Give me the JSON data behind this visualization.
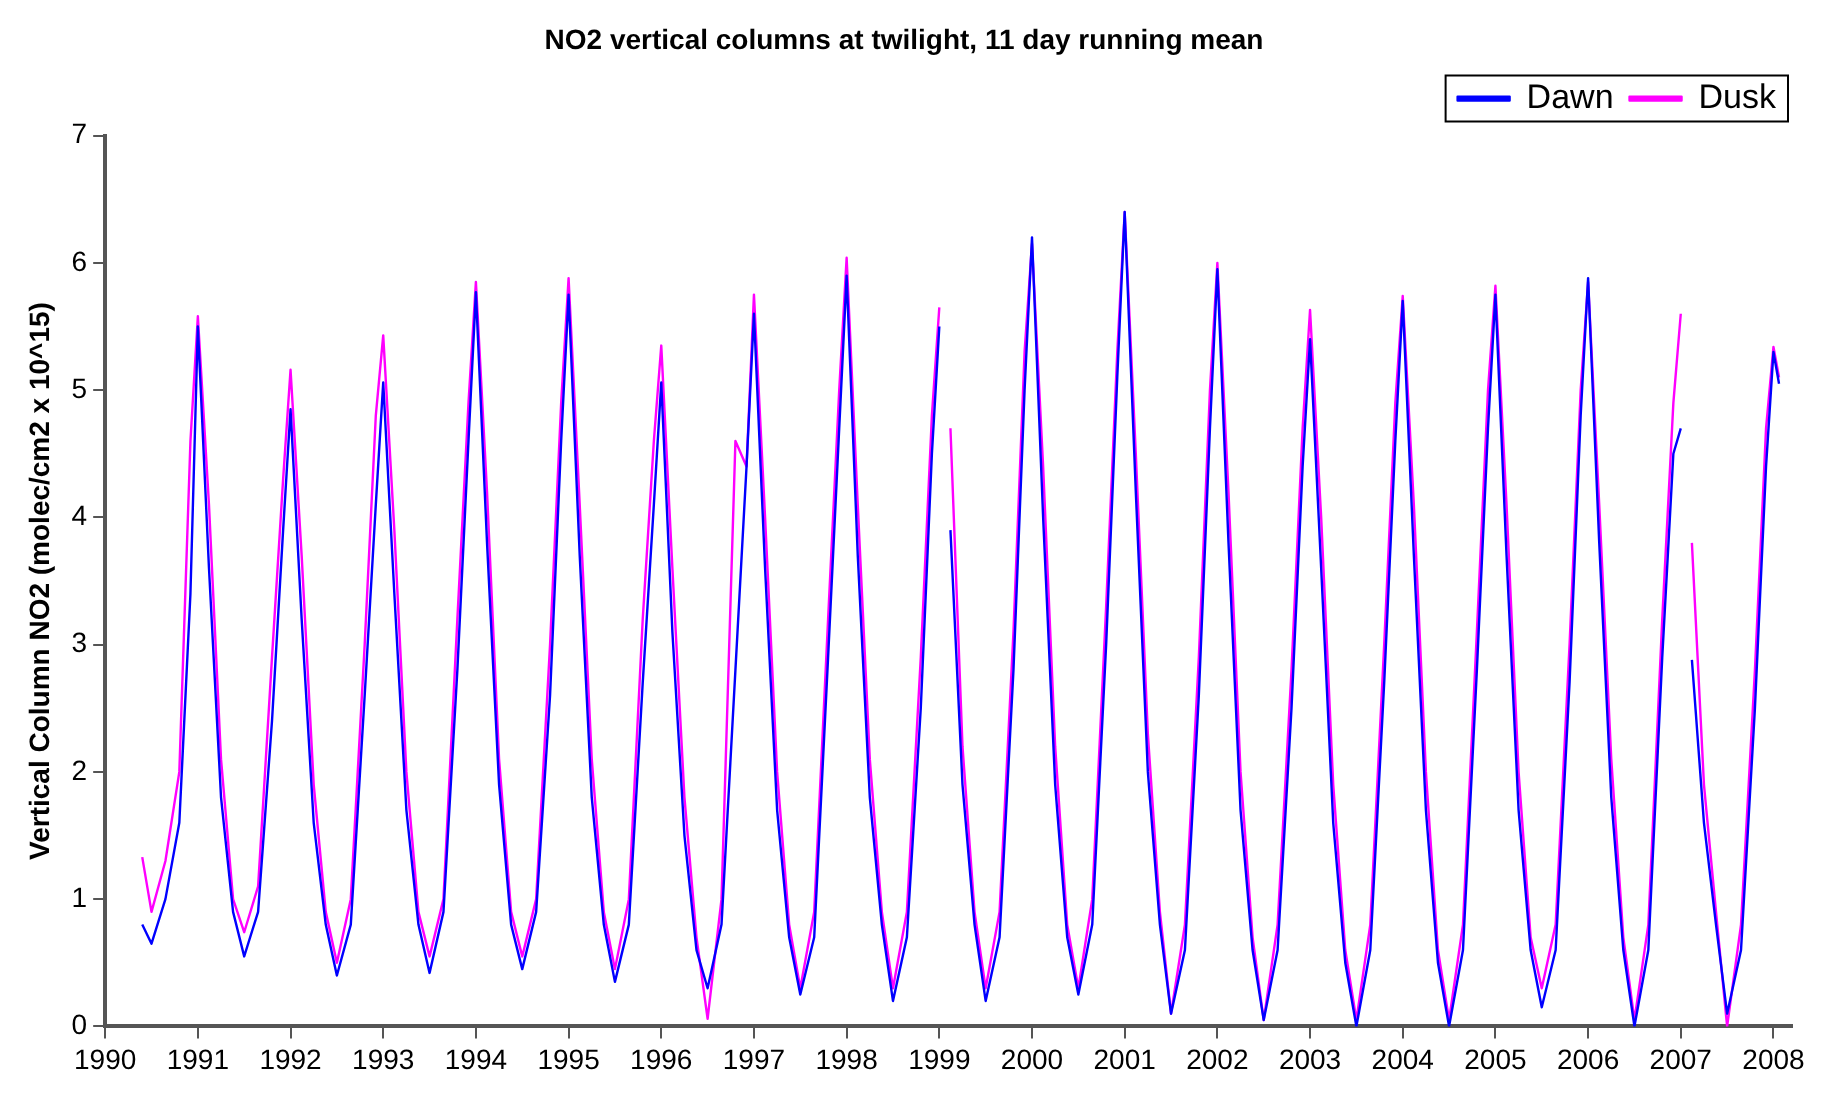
{
  "chart_data": {
    "type": "line",
    "title": "NO2 vertical columns at twilight, 11 day running mean",
    "ylabel": "Vertical Column NO2 (molec/cm2 x 10^15)",
    "x": [
      1990.4,
      1990.5,
      1990.65,
      1990.8,
      1990.92,
      1991,
      1991.12,
      1991.25,
      1991.38,
      1991.5,
      1991.65,
      1991.8,
      1991.92,
      1992,
      1992.12,
      1992.25,
      1992.38,
      1992.5,
      1992.65,
      1992.8,
      1992.92,
      1993,
      1993.12,
      1993.25,
      1993.38,
      1993.5,
      1993.65,
      1993.8,
      1993.92,
      1994,
      1994.12,
      1994.25,
      1994.38,
      1994.5,
      1994.65,
      1994.8,
      1994.92,
      1995,
      1995.12,
      1995.25,
      1995.38,
      1995.5,
      1995.65,
      1995.8,
      1995.92,
      1996,
      1996.12,
      1996.25,
      1996.38,
      1996.5,
      1996.65,
      1996.8,
      1996.92,
      1997,
      1997.12,
      1997.25,
      1997.38,
      1997.5,
      1997.65,
      1997.8,
      1997.92,
      1998,
      1998.12,
      1998.25,
      1998.38,
      1998.5,
      1998.65,
      1998.8,
      1998.92,
      1999,
      1999.06,
      1999.12,
      1999.25,
      1999.38,
      1999.5,
      1999.65,
      1999.8,
      1999.92,
      2000,
      2000.12,
      2000.25,
      2000.38,
      2000.5,
      2000.65,
      2000.8,
      2000.92,
      2001,
      2001.12,
      2001.25,
      2001.38,
      2001.5,
      2001.65,
      2001.8,
      2001.92,
      2002,
      2002.12,
      2002.25,
      2002.38,
      2002.5,
      2002.65,
      2002.8,
      2002.92,
      2003,
      2003.12,
      2003.25,
      2003.38,
      2003.5,
      2003.65,
      2003.8,
      2003.92,
      2004,
      2004.12,
      2004.25,
      2004.38,
      2004.5,
      2004.65,
      2004.8,
      2004.92,
      2005,
      2005.12,
      2005.25,
      2005.38,
      2005.5,
      2005.65,
      2005.8,
      2005.92,
      2006,
      2006.12,
      2006.25,
      2006.38,
      2006.5,
      2006.65,
      2006.8,
      2006.92,
      2007,
      2007.06,
      2007.12,
      2007.25,
      2007.38,
      2007.5,
      2007.65,
      2007.8,
      2007.92,
      2008,
      2008.06
    ],
    "series": [
      {
        "name": "Dawn",
        "color": "#0000ff",
        "values": [
          0.8,
          0.65,
          1.0,
          1.6,
          3.4,
          5.5,
          3.6,
          1.8,
          0.9,
          0.55,
          0.9,
          2.4,
          3.9,
          4.85,
          3.2,
          1.6,
          0.8,
          0.4,
          0.8,
          2.6,
          4.1,
          5.06,
          3.4,
          1.7,
          0.8,
          0.42,
          0.9,
          2.8,
          4.6,
          5.77,
          3.8,
          1.9,
          0.8,
          0.45,
          0.9,
          2.6,
          4.6,
          5.75,
          3.7,
          1.8,
          0.8,
          0.35,
          0.8,
          2.7,
          4.1,
          5.06,
          3.1,
          1.5,
          0.6,
          0.3,
          0.8,
          2.8,
          4.4,
          5.6,
          3.6,
          1.7,
          0.7,
          0.25,
          0.7,
          2.9,
          4.7,
          5.9,
          3.7,
          1.8,
          0.8,
          0.2,
          0.7,
          2.5,
          4.5,
          5.5,
          null,
          3.9,
          1.9,
          0.8,
          0.2,
          0.7,
          2.8,
          5.0,
          6.2,
          4.0,
          1.9,
          0.7,
          0.25,
          0.8,
          3.0,
          5.1,
          6.4,
          4.2,
          2.0,
          0.8,
          0.1,
          0.6,
          2.6,
          4.7,
          5.95,
          3.8,
          1.7,
          0.6,
          0.05,
          0.6,
          2.5,
          4.4,
          5.4,
          3.6,
          1.6,
          0.5,
          0.0,
          0.6,
          2.7,
          4.6,
          5.7,
          3.7,
          1.7,
          0.5,
          0.0,
          0.6,
          2.8,
          4.7,
          5.75,
          3.7,
          1.7,
          0.6,
          0.15,
          0.6,
          2.7,
          4.8,
          5.88,
          3.8,
          1.8,
          0.6,
          0.0,
          0.6,
          2.9,
          4.5,
          4.7,
          null,
          2.88,
          1.6,
          0.8,
          0.1,
          0.6,
          2.5,
          4.4,
          5.3,
          5.05
        ]
      },
      {
        "name": "Dusk",
        "color": "#ff00ff",
        "values": [
          1.33,
          0.9,
          1.3,
          2.0,
          4.6,
          5.58,
          4.1,
          2.1,
          1.0,
          0.74,
          1.1,
          2.9,
          4.3,
          5.16,
          3.7,
          1.9,
          0.9,
          0.5,
          1.0,
          3.0,
          4.8,
          5.43,
          3.9,
          2.0,
          0.9,
          0.55,
          1.0,
          3.2,
          4.9,
          5.85,
          4.2,
          2.1,
          0.9,
          0.55,
          1.0,
          3.0,
          4.9,
          5.88,
          4.1,
          2.1,
          0.9,
          0.45,
          1.0,
          3.2,
          4.6,
          5.35,
          3.6,
          1.8,
          0.7,
          0.06,
          1.0,
          4.6,
          4.4,
          5.75,
          4.0,
          2.0,
          0.8,
          0.3,
          0.9,
          3.2,
          5.0,
          6.04,
          4.1,
          2.1,
          0.9,
          0.3,
          0.9,
          2.9,
          4.8,
          5.65,
          null,
          4.7,
          2.2,
          0.9,
          0.3,
          0.9,
          3.1,
          5.3,
          6.15,
          4.4,
          2.2,
          0.8,
          0.3,
          1.0,
          3.3,
          5.3,
          6.4,
          4.5,
          2.3,
          0.9,
          0.1,
          0.8,
          2.9,
          5.0,
          6.0,
          4.2,
          2.0,
          0.7,
          0.05,
          0.8,
          2.8,
          4.7,
          5.63,
          4.0,
          1.9,
          0.6,
          0.05,
          0.8,
          3.0,
          4.9,
          5.74,
          4.1,
          2.0,
          0.6,
          0.05,
          0.8,
          3.1,
          5.0,
          5.82,
          4.1,
          2.0,
          0.7,
          0.3,
          0.8,
          3.0,
          5.0,
          5.85,
          4.1,
          2.1,
          0.7,
          0.05,
          0.8,
          3.2,
          4.9,
          5.6,
          null,
          3.8,
          1.9,
          0.9,
          0.0,
          0.8,
          2.8,
          4.7,
          5.34,
          5.1
        ]
      }
    ],
    "xlim": [
      1990,
      2008.2
    ],
    "xticks": [
      1990,
      1991,
      1992,
      1993,
      1994,
      1995,
      1996,
      1997,
      1998,
      1999,
      2000,
      2001,
      2002,
      2003,
      2004,
      2005,
      2006,
      2007,
      2008
    ],
    "ylim": [
      0,
      7
    ],
    "yticks": [
      0,
      1,
      2,
      3,
      4,
      5,
      6,
      7
    ],
    "grid": false,
    "legend": "top right",
    "marker": "none",
    "line_style": "solid"
  }
}
